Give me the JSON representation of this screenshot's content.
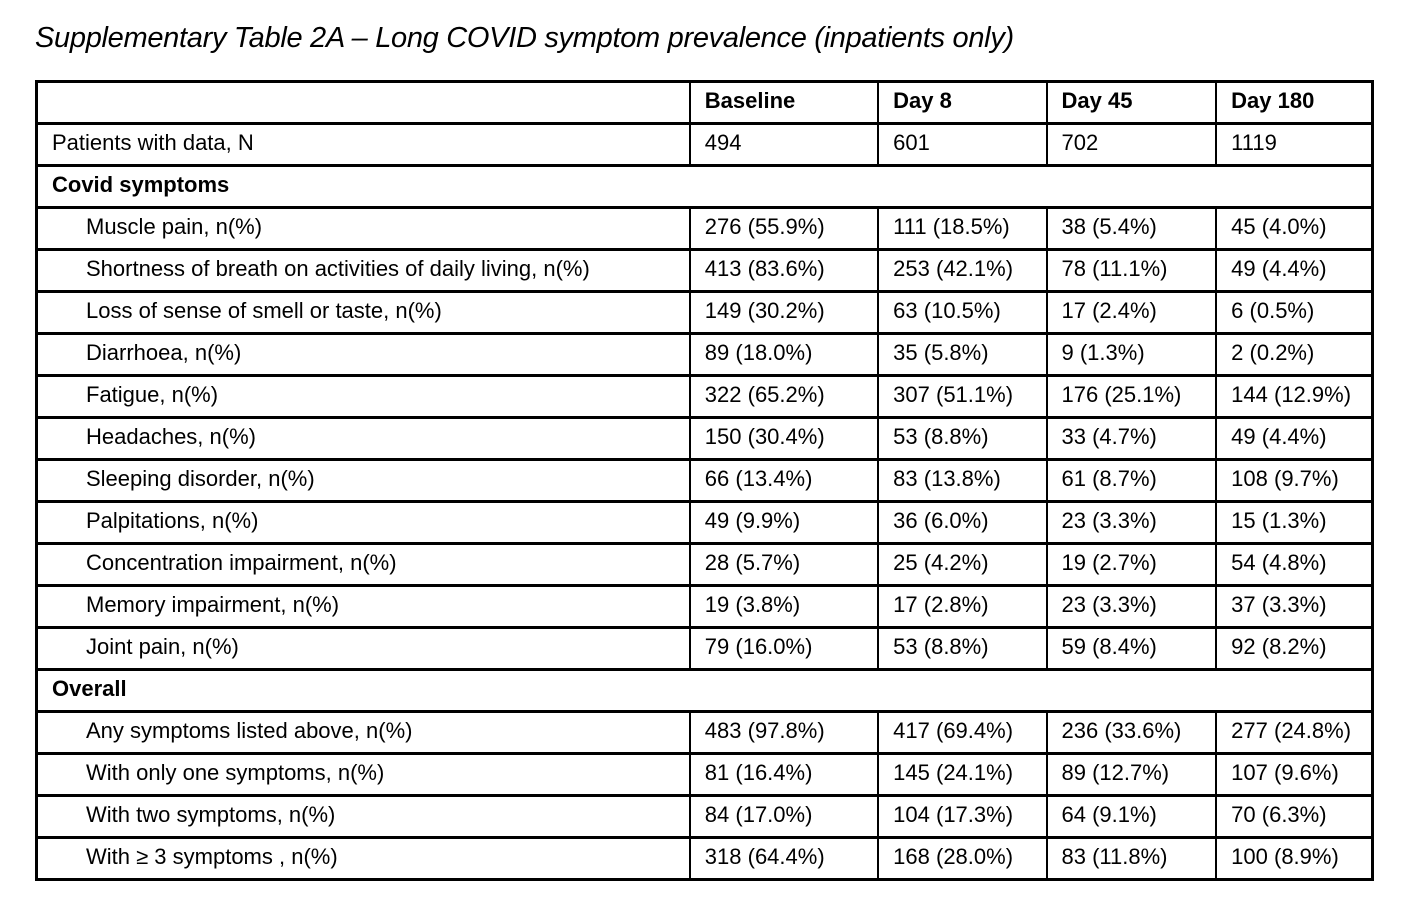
{
  "title": "Supplementary Table 2A – Long COVID symptom prevalence (inpatients only)",
  "table": {
    "columns": [
      "",
      "Baseline",
      "Day 8",
      "Day 45",
      "Day 180"
    ],
    "rows": [
      {
        "type": "data",
        "indent": false,
        "label": "Patients with data, N",
        "values": [
          "494",
          "601",
          "702",
          "1119"
        ]
      },
      {
        "type": "section",
        "label": "Covid symptoms"
      },
      {
        "type": "data",
        "indent": true,
        "label": "Muscle pain, n(%)",
        "values": [
          "276 (55.9%)",
          "111 (18.5%)",
          "38 (5.4%)",
          "45 (4.0%)"
        ]
      },
      {
        "type": "data",
        "indent": true,
        "label": "Shortness of breath on activities of daily living, n(%)",
        "values": [
          "413 (83.6%)",
          "253 (42.1%)",
          "78 (11.1%)",
          "49 (4.4%)"
        ]
      },
      {
        "type": "data",
        "indent": true,
        "label": "Loss of sense of smell or taste, n(%)",
        "values": [
          "149 (30.2%)",
          "63 (10.5%)",
          "17 (2.4%)",
          "6 (0.5%)"
        ]
      },
      {
        "type": "data",
        "indent": true,
        "label": "Diarrhoea, n(%)",
        "values": [
          "89 (18.0%)",
          "35 (5.8%)",
          "9 (1.3%)",
          "2 (0.2%)"
        ]
      },
      {
        "type": "data",
        "indent": true,
        "label": "Fatigue, n(%)",
        "values": [
          "322 (65.2%)",
          "307 (51.1%)",
          "176 (25.1%)",
          "144 (12.9%)"
        ]
      },
      {
        "type": "data",
        "indent": true,
        "label": "Headaches, n(%)",
        "values": [
          "150 (30.4%)",
          "53 (8.8%)",
          "33 (4.7%)",
          "49 (4.4%)"
        ]
      },
      {
        "type": "data",
        "indent": true,
        "label": "Sleeping disorder, n(%)",
        "values": [
          "66 (13.4%)",
          "83 (13.8%)",
          "61 (8.7%)",
          "108 (9.7%)"
        ]
      },
      {
        "type": "data",
        "indent": true,
        "label": "Palpitations, n(%)",
        "values": [
          "49 (9.9%)",
          "36 (6.0%)",
          "23 (3.3%)",
          "15 (1.3%)"
        ]
      },
      {
        "type": "data",
        "indent": true,
        "label": "Concentration impairment, n(%)",
        "values": [
          "28 (5.7%)",
          "25 (4.2%)",
          "19 (2.7%)",
          "54 (4.8%)"
        ]
      },
      {
        "type": "data",
        "indent": true,
        "label": "Memory impairment, n(%)",
        "values": [
          "19 (3.8%)",
          "17 (2.8%)",
          "23 (3.3%)",
          "37 (3.3%)"
        ]
      },
      {
        "type": "data",
        "indent": true,
        "label": "Joint pain, n(%)",
        "values": [
          "79 (16.0%)",
          "53 (8.8%)",
          "59 (8.4%)",
          "92 (8.2%)"
        ]
      },
      {
        "type": "section",
        "label": "Overall"
      },
      {
        "type": "data",
        "indent": true,
        "label": "Any symptoms listed above, n(%)",
        "values": [
          "483 (97.8%)",
          "417 (69.4%)",
          "236 (33.6%)",
          "277 (24.8%)"
        ]
      },
      {
        "type": "data",
        "indent": true,
        "label": "With only one symptoms, n(%)",
        "values": [
          "81 (16.4%)",
          "145 (24.1%)",
          "89 (12.7%)",
          "107 (9.6%)"
        ]
      },
      {
        "type": "data",
        "indent": true,
        "label": "With two symptoms, n(%)",
        "values": [
          "84 (17.0%)",
          "104 (17.3%)",
          "64 (9.1%)",
          "70 (6.3%)"
        ]
      },
      {
        "type": "data",
        "indent": true,
        "label": "With ≥ 3 symptoms , n(%)",
        "values": [
          "318 (64.4%)",
          "168 (28.0%)",
          "83 (11.8%)",
          "100 (8.9%)"
        ]
      }
    ],
    "col_widths_pct": [
      48.9,
      14.1,
      12.6,
      12.7,
      11.7
    ]
  }
}
